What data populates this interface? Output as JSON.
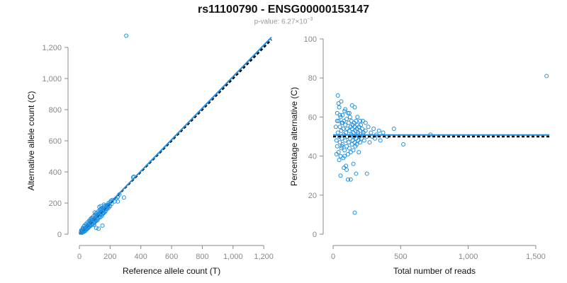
{
  "title": "rs11100790 - ENSG00000153147",
  "subtitle": {
    "prefix": "p-value: ",
    "mantissa": "6.27",
    "times": "×10",
    "exponent": "−3"
  },
  "colors": {
    "points": "#1f8fe0",
    "fit_line": "#1f8fe0",
    "reference_line": "#000000",
    "axis": "#888888"
  },
  "chart_data": [
    {
      "type": "scatter",
      "id": "left",
      "xlabel": "Reference allele count (T)",
      "ylabel": "Alternative allele count (C)",
      "xlim": [
        0,
        1250
      ],
      "ylim": [
        0,
        1250
      ],
      "xticks": [
        0,
        200,
        400,
        600,
        800,
        1000,
        1200
      ],
      "xtick_labels": [
        "0",
        "200",
        "400",
        "600",
        "800",
        "1,000",
        "1,200"
      ],
      "yticks": [
        0,
        200,
        400,
        600,
        800,
        1000,
        1200
      ],
      "ytick_labels": [
        "0",
        "200",
        "400",
        "600",
        "800",
        "1,000",
        "1,200"
      ],
      "fit_line": {
        "x": [
          0,
          1250
        ],
        "y": [
          0,
          1265
        ]
      },
      "reference_line": {
        "x": [
          0,
          1250
        ],
        "y": [
          0,
          1250
        ],
        "dashed": true
      },
      "points": [
        [
          10,
          12
        ],
        [
          15,
          18
        ],
        [
          20,
          14
        ],
        [
          25,
          30
        ],
        [
          30,
          22
        ],
        [
          35,
          40
        ],
        [
          40,
          28
        ],
        [
          45,
          50
        ],
        [
          50,
          36
        ],
        [
          55,
          60
        ],
        [
          60,
          45
        ],
        [
          65,
          70
        ],
        [
          70,
          55
        ],
        [
          75,
          80
        ],
        [
          80,
          62
        ],
        [
          85,
          90
        ],
        [
          90,
          75
        ],
        [
          95,
          100
        ],
        [
          100,
          82
        ],
        [
          105,
          110
        ],
        [
          110,
          95
        ],
        [
          115,
          120
        ],
        [
          120,
          100
        ],
        [
          125,
          130
        ],
        [
          130,
          115
        ],
        [
          135,
          140
        ],
        [
          140,
          125
        ],
        [
          145,
          150
        ],
        [
          150,
          130
        ],
        [
          155,
          160
        ],
        [
          160,
          140
        ],
        [
          165,
          170
        ],
        [
          170,
          150
        ],
        [
          175,
          178
        ],
        [
          180,
          160
        ],
        [
          185,
          188
        ],
        [
          190,
          170
        ],
        [
          12,
          25
        ],
        [
          18,
          9
        ],
        [
          22,
          40
        ],
        [
          28,
          15
        ],
        [
          33,
          55
        ],
        [
          38,
          20
        ],
        [
          42,
          65
        ],
        [
          48,
          30
        ],
        [
          52,
          75
        ],
        [
          58,
          40
        ],
        [
          62,
          85
        ],
        [
          68,
          50
        ],
        [
          72,
          95
        ],
        [
          78,
          58
        ],
        [
          82,
          105
        ],
        [
          88,
          65
        ],
        [
          92,
          115
        ],
        [
          98,
          72
        ],
        [
          102,
          125
        ],
        [
          108,
          85
        ],
        [
          112,
          135
        ],
        [
          118,
          90
        ],
        [
          122,
          145
        ],
        [
          128,
          105
        ],
        [
          132,
          155
        ],
        [
          138,
          110
        ],
        [
          142,
          165
        ],
        [
          148,
          120
        ],
        [
          152,
          170
        ],
        [
          158,
          135
        ],
        [
          162,
          180
        ],
        [
          168,
          145
        ],
        [
          172,
          185
        ],
        [
          20,
          20
        ],
        [
          40,
          38
        ],
        [
          60,
          62
        ],
        [
          80,
          78
        ],
        [
          100,
          98
        ],
        [
          120,
          118
        ],
        [
          140,
          142
        ],
        [
          160,
          158
        ],
        [
          180,
          182
        ],
        [
          200,
          205
        ],
        [
          210,
          195
        ],
        [
          215,
          220
        ],
        [
          230,
          210
        ],
        [
          240,
          230
        ],
        [
          250,
          240
        ],
        [
          260,
          255
        ],
        [
          200,
          180
        ],
        [
          205,
          215
        ],
        [
          190,
          200
        ],
        [
          185,
          175
        ],
        [
          125,
          35
        ],
        [
          150,
          55
        ],
        [
          110,
          40
        ],
        [
          95,
          60
        ],
        [
          140,
          160
        ],
        [
          110,
          135
        ],
        [
          70,
          85
        ],
        [
          55,
          45
        ],
        [
          35,
          28
        ],
        [
          25,
          35
        ],
        [
          15,
          22
        ],
        [
          45,
          42
        ],
        [
          65,
          58
        ],
        [
          85,
          95
        ],
        [
          105,
          88
        ],
        [
          135,
          128
        ],
        [
          155,
          148
        ],
        [
          175,
          165
        ],
        [
          195,
          190
        ],
        [
          30,
          50
        ],
        [
          290,
          235
        ],
        [
          305,
          1275
        ],
        [
          350,
          365
        ],
        [
          355,
          370
        ],
        [
          250,
          210
        ],
        [
          140,
          180
        ],
        [
          160,
          190
        ],
        [
          75,
          100
        ],
        [
          100,
          140
        ],
        [
          130,
          175
        ]
      ]
    },
    {
      "type": "scatter",
      "id": "right",
      "xlabel": "Total number of reads",
      "ylabel": "Percentage alternative (C)",
      "xlim": [
        0,
        1600
      ],
      "ylim": [
        0,
        100
      ],
      "xticks": [
        0,
        500,
        1000,
        1500
      ],
      "xtick_labels": [
        "0",
        "500",
        "1,000",
        "1,500"
      ],
      "yticks": [
        0,
        20,
        40,
        60,
        80,
        100
      ],
      "ytick_labels": [
        "0",
        "20",
        "40",
        "60",
        "80",
        "100"
      ],
      "fit_line": {
        "x": [
          0,
          1600
        ],
        "y": [
          50.8,
          50.8
        ]
      },
      "reference_line": {
        "x": [
          0,
          1600
        ],
        "y": [
          50,
          50
        ],
        "dashed": true
      },
      "points": [
        [
          20,
          55
        ],
        [
          25,
          48
        ],
        [
          30,
          62
        ],
        [
          30,
          45
        ],
        [
          35,
          52
        ],
        [
          40,
          58
        ],
        [
          40,
          42
        ],
        [
          45,
          65
        ],
        [
          45,
          50
        ],
        [
          50,
          47
        ],
        [
          50,
          55
        ],
        [
          55,
          60
        ],
        [
          55,
          40
        ],
        [
          60,
          53
        ],
        [
          60,
          44
        ],
        [
          65,
          57
        ],
        [
          65,
          49
        ],
        [
          70,
          61
        ],
        [
          70,
          46
        ],
        [
          75,
          54
        ],
        [
          75,
          39
        ],
        [
          80,
          58
        ],
        [
          80,
          51
        ],
        [
          85,
          63
        ],
        [
          85,
          43
        ],
        [
          90,
          56
        ],
        [
          90,
          48
        ],
        [
          95,
          52
        ],
        [
          95,
          35
        ],
        [
          100,
          59
        ],
        [
          100,
          45
        ],
        [
          105,
          54
        ],
        [
          105,
          50
        ],
        [
          110,
          62
        ],
        [
          110,
          41
        ],
        [
          115,
          57
        ],
        [
          115,
          47
        ],
        [
          120,
          53
        ],
        [
          120,
          44
        ],
        [
          125,
          60
        ],
        [
          125,
          49
        ],
        [
          130,
          55
        ],
        [
          130,
          42
        ],
        [
          135,
          58
        ],
        [
          135,
          51
        ],
        [
          140,
          54
        ],
        [
          140,
          46
        ],
        [
          145,
          56
        ],
        [
          145,
          48
        ],
        [
          150,
          52
        ],
        [
          150,
          43
        ],
        [
          155,
          57
        ],
        [
          155,
          50
        ],
        [
          160,
          55
        ],
        [
          160,
          47
        ],
        [
          165,
          53
        ],
        [
          165,
          45
        ],
        [
          170,
          58
        ],
        [
          170,
          49
        ],
        [
          175,
          54
        ],
        [
          175,
          46
        ],
        [
          180,
          56
        ],
        [
          180,
          51
        ],
        [
          185,
          52
        ],
        [
          185,
          48
        ],
        [
          190,
          55
        ],
        [
          195,
          50
        ],
        [
          200,
          53
        ],
        [
          200,
          47
        ],
        [
          205,
          56
        ],
        [
          210,
          49
        ],
        [
          215,
          54
        ],
        [
          220,
          51
        ],
        [
          225,
          52
        ],
        [
          230,
          48
        ],
        [
          240,
          53
        ],
        [
          250,
          50
        ],
        [
          260,
          55
        ],
        [
          270,
          47
        ],
        [
          280,
          52
        ],
        [
          290,
          50
        ],
        [
          300,
          54
        ],
        [
          310,
          49
        ],
        [
          320,
          51
        ],
        [
          340,
          53
        ],
        [
          350,
          48
        ],
        [
          370,
          52
        ],
        [
          400,
          50
        ],
        [
          450,
          54
        ],
        [
          520,
          46
        ],
        [
          720,
          51
        ],
        [
          1580,
          81
        ],
        [
          35,
          71
        ],
        [
          40,
          67
        ],
        [
          60,
          68
        ],
        [
          55,
          30
        ],
        [
          80,
          34
        ],
        [
          100,
          33
        ],
        [
          110,
          28
        ],
        [
          130,
          28
        ],
        [
          150,
          36
        ],
        [
          170,
          31
        ],
        [
          190,
          42
        ],
        [
          250,
          31
        ],
        [
          25,
          41
        ],
        [
          45,
          38
        ],
        [
          65,
          45
        ],
        [
          85,
          40
        ],
        [
          120,
          62
        ],
        [
          140,
          66
        ],
        [
          160,
          65
        ],
        [
          180,
          60
        ],
        [
          200,
          58
        ],
        [
          220,
          58
        ],
        [
          240,
          57
        ],
        [
          160,
          11
        ],
        [
          30,
          58
        ],
        [
          50,
          61
        ],
        [
          70,
          57
        ],
        [
          90,
          64
        ]
      ]
    }
  ]
}
